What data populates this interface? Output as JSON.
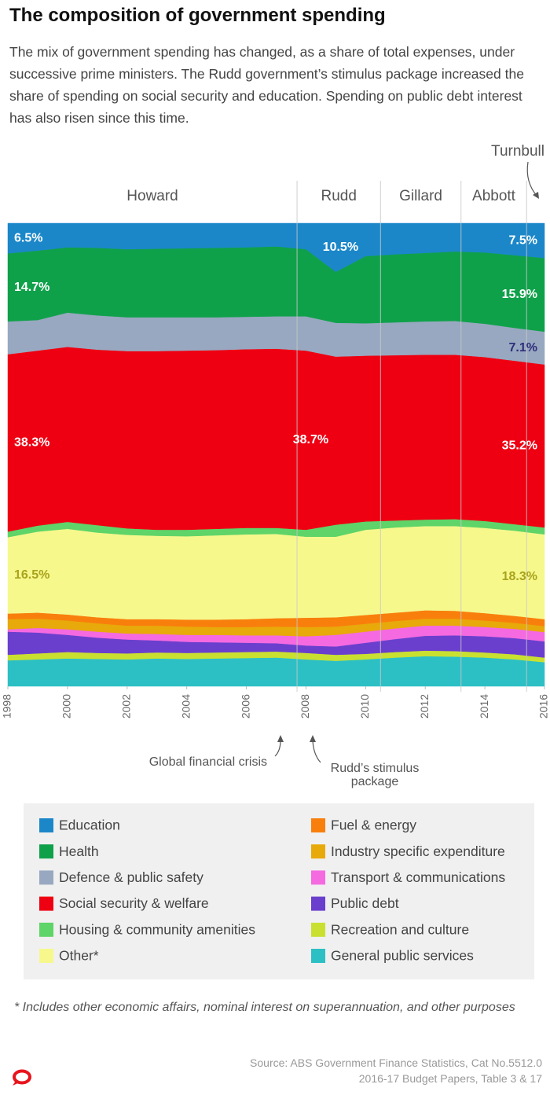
{
  "chart_data": {
    "type": "stacked_area",
    "title": "The composition of government spending",
    "subtitle": "The mix of government spending has changed, as a share of total expenses, under successive prime ministers. The Rudd government’s stimulus package increased the share of spending on social security and education. Spending on public debt interest has also risen since this time.",
    "x": [
      1998,
      1999,
      2000,
      2001,
      2002,
      2003,
      2004,
      2005,
      2006,
      2007,
      2008,
      2009,
      2010,
      2011,
      2012,
      2013,
      2014,
      2015,
      2016
    ],
    "xlim": [
      1998,
      2016
    ],
    "xticks": [
      1998,
      2000,
      2002,
      2004,
      2006,
      2008,
      2010,
      2012,
      2014,
      2016
    ],
    "ylim": [
      0,
      100
    ],
    "periods": [
      {
        "name": "Howard"
      },
      {
        "name": "Rudd"
      },
      {
        "name": "Gillard"
      },
      {
        "name": "Abbott"
      },
      {
        "name": "Turnbull"
      }
    ],
    "dividers": [
      2007.7,
      2010.5,
      2013.2,
      2015.4
    ],
    "annotations": [
      {
        "text": [
          "Global financial crisis"
        ]
      },
      {
        "text": [
          "Rudd’s stimulus",
          "package"
        ]
      }
    ],
    "series": [
      {
        "name": "Education",
        "color": "#1b87c9",
        "label_color": "#ffffff",
        "values": [
          6.5,
          5.9,
          5.2,
          5.3,
          5.6,
          5.5,
          5.4,
          5.3,
          5.2,
          5.0,
          5.6,
          10.5,
          7.1,
          6.7,
          6.4,
          6.1,
          6.3,
          6.9,
          7.5
        ],
        "value_labels": [
          "6.5%",
          null,
          null,
          null,
          null,
          null,
          null,
          null,
          null,
          null,
          null,
          "10.5%",
          null,
          null,
          null,
          null,
          null,
          null,
          "7.5%"
        ]
      },
      {
        "name": "Health",
        "color": "#0fa14a",
        "label_color": "#ffffff",
        "values": [
          14.7,
          15.0,
          14.1,
          14.6,
          14.7,
          14.8,
          14.9,
          15.0,
          15.0,
          15.1,
          14.5,
          11.0,
          14.5,
          14.7,
          14.8,
          15.0,
          15.4,
          15.7,
          15.9
        ],
        "value_labels": [
          "14.7%",
          null,
          null,
          null,
          null,
          null,
          null,
          null,
          null,
          null,
          null,
          null,
          null,
          null,
          null,
          null,
          null,
          null,
          "15.9%"
        ]
      },
      {
        "name": "Defence & public safety",
        "color": "#98a8c0",
        "label_color": "#2e2e7a",
        "values": [
          7.1,
          6.6,
          7.4,
          7.4,
          7.3,
          7.3,
          7.2,
          7.1,
          7.0,
          7.0,
          7.4,
          7.3,
          7.0,
          7.1,
          7.2,
          7.3,
          7.2,
          7.1,
          7.1
        ],
        "value_labels": [
          null,
          null,
          null,
          null,
          null,
          null,
          null,
          null,
          null,
          null,
          null,
          null,
          null,
          null,
          null,
          null,
          null,
          null,
          "7.1%"
        ]
      },
      {
        "name": "Social security & welfare",
        "color": "#ee0012",
        "label_color": "#ffffff",
        "values": [
          38.3,
          37.8,
          37.8,
          37.9,
          38.3,
          38.6,
          38.7,
          38.6,
          38.6,
          38.7,
          38.7,
          36.3,
          35.8,
          35.7,
          35.6,
          35.5,
          35.4,
          35.3,
          35.2
        ],
        "value_labels": [
          "38.3%",
          null,
          null,
          null,
          null,
          null,
          null,
          null,
          null,
          null,
          "38.7%",
          null,
          null,
          null,
          null,
          null,
          null,
          null,
          "35.2%"
        ]
      },
      {
        "name": "Housing & community amenities",
        "color": "#5fd468",
        "label_color": "#ffffff",
        "values": [
          1.2,
          1.3,
          1.5,
          1.6,
          1.4,
          1.3,
          1.4,
          1.4,
          1.4,
          1.3,
          1.5,
          2.6,
          1.8,
          1.5,
          1.4,
          1.5,
          1.5,
          1.4,
          1.5
        ]
      },
      {
        "name": "Other*",
        "color": "#f6f88c",
        "label_color": "#a9a21c",
        "values": [
          16.5,
          17.5,
          18.5,
          18.3,
          18.2,
          18.0,
          18.0,
          18.2,
          18.3,
          18.2,
          17.5,
          17.4,
          18.4,
          18.4,
          18.2,
          18.3,
          18.4,
          18.4,
          18.3
        ],
        "value_labels": [
          "16.5%",
          null,
          null,
          null,
          null,
          null,
          null,
          null,
          null,
          null,
          null,
          null,
          null,
          null,
          null,
          null,
          null,
          null,
          "18.3%"
        ]
      },
      {
        "name": "Fuel & energy",
        "color": "#f97f0c",
        "values": [
          1.2,
          1.3,
          1.3,
          1.3,
          1.4,
          1.4,
          1.5,
          1.6,
          1.7,
          1.8,
          2.0,
          2.0,
          1.9,
          1.8,
          1.8,
          1.7,
          1.6,
          1.5,
          1.5
        ]
      },
      {
        "name": "Industry specific expenditure",
        "color": "#e8a90a",
        "values": [
          2.2,
          2.0,
          1.9,
          1.8,
          1.7,
          1.8,
          1.8,
          1.7,
          1.8,
          1.9,
          2.0,
          1.8,
          1.7,
          1.6,
          1.5,
          1.5,
          1.4,
          1.3,
          1.3
        ]
      },
      {
        "name": "Transport & communications",
        "color": "#f56ae0",
        "values": [
          0.5,
          1.0,
          1.2,
          1.3,
          1.3,
          1.4,
          1.5,
          1.6,
          1.6,
          1.7,
          2.0,
          2.5,
          2.4,
          2.3,
          2.2,
          2.1,
          2.0,
          2.0,
          2.0
        ]
      },
      {
        "name": "Public debt",
        "color": "#6b3fcd",
        "values": [
          5.0,
          4.5,
          3.7,
          3.3,
          3.0,
          2.6,
          2.4,
          2.2,
          2.0,
          1.8,
          1.6,
          1.8,
          2.4,
          2.8,
          3.2,
          3.4,
          3.5,
          3.5,
          3.5
        ]
      },
      {
        "name": "Recreation and culture",
        "color": "#c9e030",
        "values": [
          1.2,
          1.3,
          1.4,
          1.3,
          1.3,
          1.3,
          1.3,
          1.3,
          1.3,
          1.3,
          1.4,
          1.3,
          1.2,
          1.2,
          1.2,
          1.2,
          1.1,
          1.1,
          1.0
        ]
      },
      {
        "name": "General public services",
        "color": "#2cc0c5",
        "values": [
          5.6,
          5.8,
          6.0,
          5.9,
          5.8,
          6.0,
          5.9,
          6.0,
          6.1,
          6.2,
          5.8,
          5.5,
          5.8,
          6.2,
          6.5,
          6.4,
          6.2,
          5.8,
          5.2
        ]
      }
    ],
    "footnote": "* Includes other economic affairs, nominal interest on superannuation, and other purposes",
    "source": [
      "Source: ABS Government Finance Statistics, Cat No.5512.0",
      "2016-17 Budget Papers, Table 3 & 17"
    ]
  }
}
